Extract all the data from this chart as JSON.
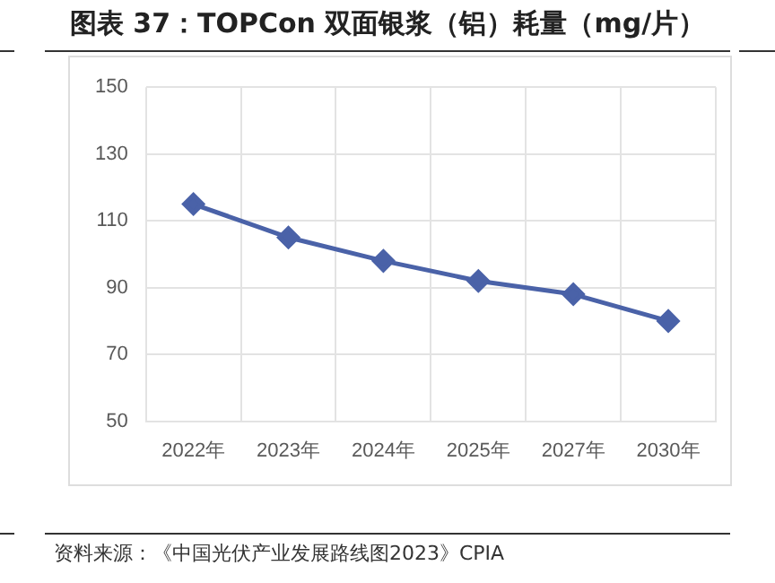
{
  "chart_data": {
    "type": "line",
    "title": "图表 37：TOPCon 双面银浆（铝）耗量（mg/片）",
    "categories": [
      "2022年",
      "2023年",
      "2024年",
      "2025年",
      "2027年",
      "2030年"
    ],
    "series": [
      {
        "color": "#4a62a8",
        "values": [
          115,
          105,
          98,
          92,
          88,
          80
        ]
      }
    ],
    "ylim": [
      50,
      150
    ],
    "yticks": [
      50,
      70,
      90,
      110,
      130,
      150
    ],
    "grid": true,
    "marker": "diamond",
    "line_style": "solid",
    "legend": false,
    "annotations": [
      "资料来源：《中国光伏产业发展路线图2023》CPIA"
    ]
  }
}
